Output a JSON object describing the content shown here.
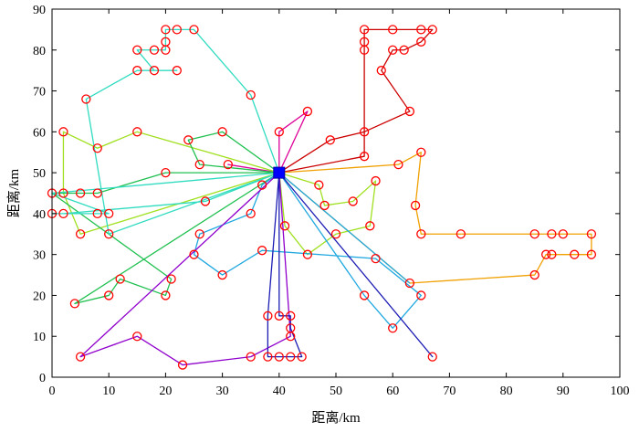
{
  "chart_data": {
    "type": "line",
    "xlabel": "距离/km",
    "ylabel": "距离/km",
    "xlim": [
      0,
      100
    ],
    "ylim": [
      0,
      90
    ],
    "xticks": [
      0,
      10,
      20,
      30,
      40,
      50,
      60,
      70,
      80,
      90,
      100
    ],
    "yticks": [
      0,
      10,
      20,
      30,
      40,
      50,
      60,
      70,
      80,
      90
    ],
    "grid": false,
    "depot": {
      "x": 40,
      "y": 50,
      "marker": "square",
      "color": "#0000ff"
    },
    "customer_marker": {
      "shape": "circle",
      "color": "#ff0000"
    },
    "series": [
      {
        "color": "#cc0000",
        "points": [
          [
            40,
            50
          ],
          [
            55,
            54
          ],
          [
            55,
            60
          ],
          [
            63,
            65
          ],
          [
            58,
            75
          ],
          [
            60,
            80
          ],
          [
            62,
            80
          ],
          [
            65,
            82
          ],
          [
            67,
            85
          ],
          [
            65,
            85
          ],
          [
            60,
            85
          ],
          [
            55,
            85
          ],
          [
            55,
            82
          ],
          [
            55,
            80
          ],
          [
            55,
            60
          ],
          [
            49,
            58
          ],
          [
            40,
            50
          ]
        ]
      },
      {
        "color": "#dd0099",
        "points": [
          [
            40,
            50
          ],
          [
            45,
            65
          ],
          [
            40,
            60
          ],
          [
            40,
            50
          ],
          [
            31,
            52
          ],
          [
            40,
            50
          ]
        ]
      },
      {
        "color": "#f0a000",
        "points": [
          [
            40,
            50
          ],
          [
            61,
            52
          ],
          [
            65,
            55
          ],
          [
            64,
            42
          ],
          [
            65,
            35
          ],
          [
            72,
            35
          ],
          [
            85,
            35
          ],
          [
            88,
            35
          ],
          [
            90,
            35
          ],
          [
            95,
            35
          ],
          [
            95,
            30
          ],
          [
            92,
            30
          ],
          [
            88,
            30
          ],
          [
            87,
            30
          ],
          [
            85,
            25
          ],
          [
            63,
            23
          ],
          [
            40,
            50
          ]
        ]
      },
      {
        "color": "#a0e020",
        "points": [
          [
            40,
            50
          ],
          [
            47,
            47
          ],
          [
            48,
            42
          ],
          [
            53,
            43
          ],
          [
            57,
            48
          ],
          [
            56,
            37
          ],
          [
            50,
            35
          ],
          [
            45,
            30
          ],
          [
            41,
            37
          ],
          [
            40,
            50
          ],
          [
            15,
            60
          ],
          [
            8,
            56
          ],
          [
            2,
            60
          ],
          [
            2,
            45
          ],
          [
            5,
            35
          ],
          [
            40,
            50
          ]
        ]
      },
      {
        "color": "#20c050",
        "points": [
          [
            40,
            50
          ],
          [
            26,
            52
          ],
          [
            24,
            58
          ],
          [
            30,
            60
          ],
          [
            40,
            50
          ],
          [
            20,
            50
          ],
          [
            8,
            45
          ],
          [
            5,
            45
          ],
          [
            2,
            45
          ],
          [
            0,
            45
          ],
          [
            21,
            24
          ],
          [
            20,
            20
          ],
          [
            12,
            24
          ],
          [
            10,
            20
          ],
          [
            4,
            18
          ],
          [
            40,
            50
          ]
        ]
      },
      {
        "color": "#30dcc0",
        "points": [
          [
            40,
            50
          ],
          [
            35,
            69
          ],
          [
            25,
            85
          ],
          [
            22,
            85
          ],
          [
            20,
            85
          ],
          [
            20,
            82
          ],
          [
            20,
            80
          ],
          [
            18,
            80
          ],
          [
            15,
            80
          ],
          [
            18,
            75
          ],
          [
            22,
            75
          ],
          [
            15,
            75
          ],
          [
            6,
            68
          ],
          [
            10,
            35
          ],
          [
            40,
            50
          ],
          [
            27,
            43
          ],
          [
            2,
            40
          ],
          [
            0,
            40
          ],
          [
            8,
            40
          ],
          [
            10,
            40
          ],
          [
            0,
            45
          ],
          [
            40,
            50
          ]
        ]
      },
      {
        "color": "#20a8e0",
        "points": [
          [
            40,
            50
          ],
          [
            37,
            47
          ],
          [
            35,
            40
          ],
          [
            26,
            35
          ],
          [
            25,
            30
          ],
          [
            30,
            25
          ],
          [
            37,
            31
          ],
          [
            57,
            29
          ],
          [
            65,
            20
          ],
          [
            60,
            12
          ],
          [
            55,
            20
          ],
          [
            40,
            50
          ],
          [
            63,
            23
          ]
        ]
      },
      {
        "color": "#9000cc",
        "points": [
          [
            40,
            50
          ],
          [
            5,
            5
          ],
          [
            15,
            10
          ],
          [
            23,
            3
          ],
          [
            35,
            5
          ],
          [
            42,
            10
          ],
          [
            40,
            50
          ]
        ]
      },
      {
        "color": "#1c1cb4",
        "points": [
          [
            40,
            50
          ],
          [
            38,
            15
          ],
          [
            38,
            5
          ],
          [
            40,
            5
          ],
          [
            42,
            5
          ],
          [
            44,
            5
          ],
          [
            42,
            12
          ],
          [
            42,
            15
          ],
          [
            40,
            15
          ],
          [
            40,
            50
          ],
          [
            67,
            5
          ],
          [
            40,
            50
          ]
        ]
      }
    ]
  }
}
